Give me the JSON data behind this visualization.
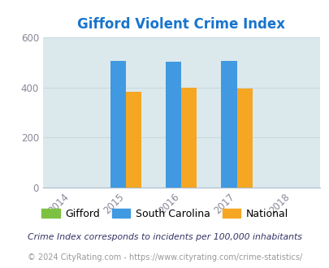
{
  "title": "Gifford Violent Crime Index",
  "title_color": "#1874CD",
  "years": [
    2014,
    2015,
    2016,
    2017,
    2018
  ],
  "bar_years": [
    2015,
    2016,
    2017
  ],
  "gifford_values": [
    0,
    0,
    0
  ],
  "sc_values": [
    507,
    502,
    508
  ],
  "national_values": [
    383,
    400,
    395
  ],
  "gifford_color": "#7DC142",
  "sc_color": "#4199E1",
  "national_color": "#F5A623",
  "ylim": [
    0,
    600
  ],
  "yticks": [
    0,
    200,
    400,
    600
  ],
  "plot_bg_color": "#DCE9EC",
  "fig_bg_color": "#FFFFFF",
  "grid_color": "#C8D8DC",
  "legend_labels": [
    "Gifford",
    "South Carolina",
    "National"
  ],
  "footnote1": "Crime Index corresponds to incidents per 100,000 inhabitants",
  "footnote2": "© 2024 CityRating.com - https://www.cityrating.com/crime-statistics/",
  "footnote1_color": "#333366",
  "footnote2_color": "#999999",
  "bar_width": 0.28,
  "tick_color": "#888899"
}
